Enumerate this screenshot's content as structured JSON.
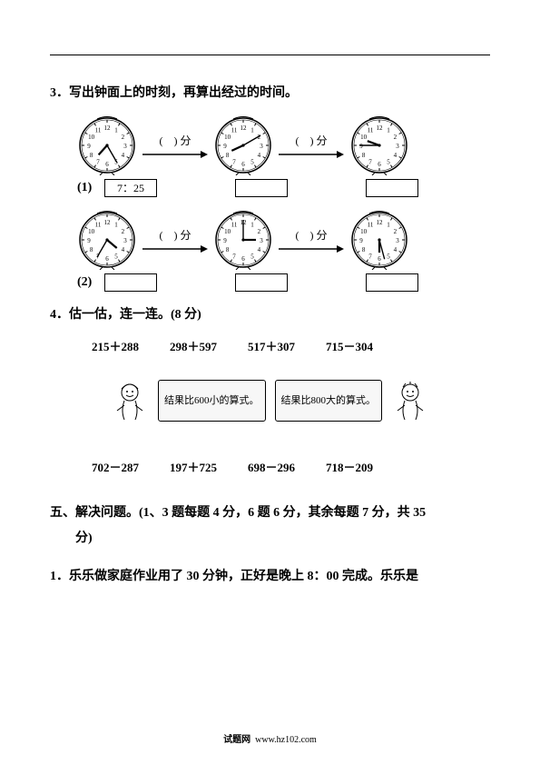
{
  "q3": {
    "num": "3．",
    "text": "写出钟面上的时刻，再算出经过的时间。",
    "arrow_label": "(　) 分",
    "rows": [
      {
        "sub": "(1)",
        "clocks": [
          {
            "hour_angle": 222,
            "min_angle": 150
          },
          {
            "hour_angle": 245,
            "min_angle": 60
          },
          {
            "hour_angle": 290,
            "min_angle": 270
          }
        ],
        "boxes": [
          "7：25",
          "",
          ""
        ]
      },
      {
        "sub": "(2)",
        "clocks": [
          {
            "hour_angle": 130,
            "min_angle": 210
          },
          {
            "hour_angle": 90,
            "min_angle": 0
          },
          {
            "hour_angle": 180,
            "min_angle": 165
          }
        ],
        "boxes": [
          "",
          "",
          ""
        ]
      }
    ]
  },
  "q4": {
    "num": "4．",
    "text": "估一估，连一连。(8 分)",
    "row1": [
      "215＋288",
      "298＋597",
      "517＋307",
      "715－304"
    ],
    "banners": [
      "结果比600小的算式。",
      "结果比800大的算式。"
    ],
    "row2": [
      "702－287",
      "197＋725",
      "698－296",
      "718－209"
    ]
  },
  "section5": {
    "label": "五、解决问题。(1、3 题每题 4 分，6 题 6 分，其余每题 7 分，共 35",
    "label2": "分)"
  },
  "q5_1": {
    "num": "1．",
    "text": "乐乐做家庭作业用了 30 分钟，正好是晚上 8：00 完成。乐乐是"
  },
  "footer": {
    "site_label": "试题网",
    "url": "www.hz102.com"
  }
}
